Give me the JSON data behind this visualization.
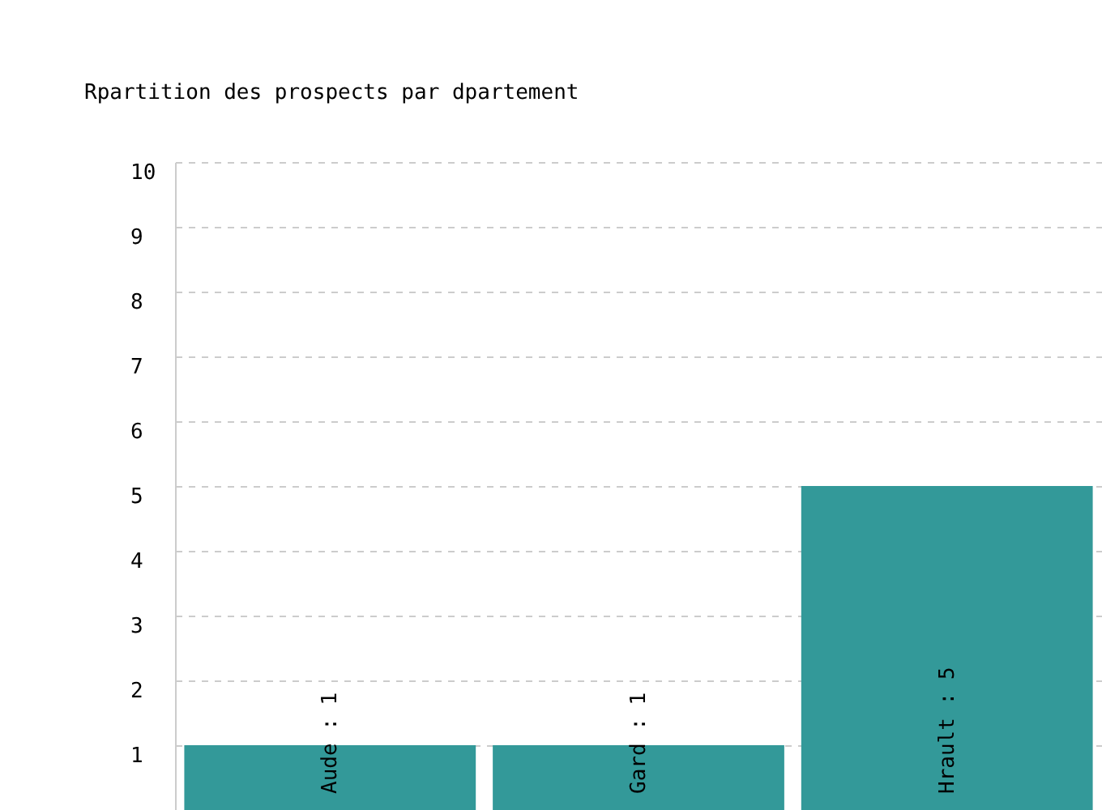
{
  "chart_data": {
    "type": "bar",
    "title": "Rpartition des prospects par dpartement",
    "categories": [
      null,
      null,
      null
    ],
    "values": [
      1,
      1,
      5
    ],
    "value_labels": [
      "Aude : 1",
      "Gard : 1",
      "Hrault : 5"
    ],
    "color": "#339999",
    "ylim": [
      0,
      10
    ],
    "yticks": [
      1,
      2,
      3,
      4,
      5,
      6,
      7,
      8,
      9,
      10
    ],
    "grid": "y"
  }
}
